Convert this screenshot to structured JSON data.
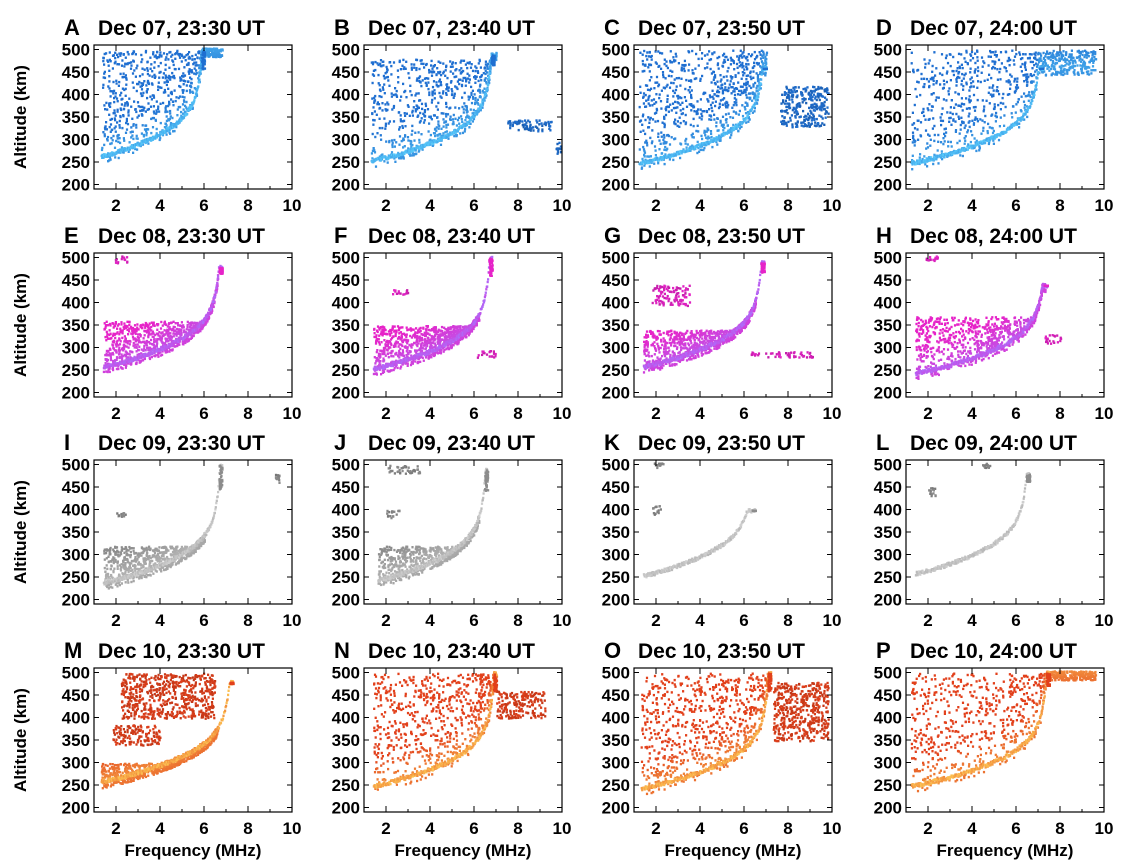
{
  "chart_data": {
    "type": "scatter",
    "description_free": true,
    "shared_axes": {
      "xlabel": "Frequency (MHz)",
      "ylabel": "Altitude (km)",
      "xlim": [
        1,
        10
      ],
      "ylim": [
        190,
        510
      ],
      "xticks": [
        2,
        4,
        6,
        8,
        10
      ],
      "yticks": [
        200,
        250,
        300,
        350,
        400,
        450,
        500
      ]
    },
    "rows": [
      {
        "date": "Dec 07",
        "color": "#1f6fd1",
        "light": "#5fd4ff"
      },
      {
        "date": "Dec 08",
        "color": "#e623c8",
        "light": "#a874ff"
      },
      {
        "date": "Dec 09",
        "color": "#8c8c8c",
        "light": "#d8d8d8"
      },
      {
        "date": "Dec 10",
        "color": "#e2401b",
        "light": "#ffd15a"
      }
    ],
    "panels": [
      {
        "letter": "A",
        "title": "Dec 07, 23:30 UT",
        "row": 0,
        "trace": {
          "f0": 1.3,
          "fc": 6.0,
          "h0": 265,
          "hmax": 500
        },
        "fill_top": 500,
        "fill_fmax": 6.8,
        "density": 0.55,
        "patches": []
      },
      {
        "letter": "B",
        "title": "Dec 07, 23:40 UT",
        "row": 0,
        "trace": {
          "f0": 1.3,
          "fc": 6.9,
          "h0": 255,
          "hmax": 490
        },
        "fill_top": 480,
        "fill_fmax": 7.0,
        "density": 0.5,
        "patches": [
          {
            "f": [
              7.5,
              9.5
            ],
            "h": [
              320,
              345
            ]
          },
          {
            "f": [
              9.7,
              10.0
            ],
            "h": [
              270,
              300
            ]
          }
        ]
      },
      {
        "letter": "C",
        "title": "Dec 07, 23:50 UT",
        "row": 0,
        "trace": {
          "f0": 1.2,
          "fc": 7.0,
          "h0": 250,
          "hmax": 460
        },
        "fill_top": 500,
        "fill_fmax": 7.0,
        "density": 0.55,
        "patches": [
          {
            "f": [
              7.6,
              9.8
            ],
            "h": [
              330,
              420
            ]
          }
        ]
      },
      {
        "letter": "D",
        "title": "Dec 07, 24:00 UT",
        "row": 0,
        "trace": {
          "f0": 1.2,
          "fc": 7.2,
          "h0": 250,
          "hmax": 460
        },
        "fill_top": 500,
        "fill_fmax": 9.6,
        "density": 0.6,
        "patches": []
      },
      {
        "letter": "E",
        "title": "Dec 08, 23:30 UT",
        "row": 1,
        "trace": {
          "f0": 1.4,
          "fc": 6.8,
          "h0": 260,
          "hmax": 480
        },
        "fill_top": 360,
        "fill_fmax": 6.6,
        "density": 0.6,
        "patches": [
          {
            "f": [
              1.9,
              2.6
            ],
            "h": [
              490,
              505
            ]
          }
        ]
      },
      {
        "letter": "F",
        "title": "Dec 08, 23:40 UT",
        "row": 1,
        "trace": {
          "f0": 1.4,
          "fc": 6.8,
          "h0": 255,
          "hmax": 500
        },
        "fill_top": 350,
        "fill_fmax": 6.2,
        "density": 0.6,
        "patches": [
          {
            "f": [
              2.2,
              3.0
            ],
            "h": [
              420,
              430
            ]
          },
          {
            "f": [
              6.1,
              7.0
            ],
            "h": [
              280,
              295
            ]
          }
        ]
      },
      {
        "letter": "G",
        "title": "Dec 08, 23:50 UT",
        "row": 1,
        "trace": {
          "f0": 1.4,
          "fc": 6.9,
          "h0": 260,
          "hmax": 490
        },
        "fill_top": 340,
        "fill_fmax": 6.5,
        "density": 0.55,
        "patches": [
          {
            "f": [
              1.8,
              3.5
            ],
            "h": [
              395,
              440
            ]
          },
          {
            "f": [
              6.3,
              9.2
            ],
            "h": [
              280,
              292
            ]
          }
        ]
      },
      {
        "letter": "H",
        "title": "Dec 08, 24:00 UT",
        "row": 1,
        "trace": {
          "f0": 1.4,
          "fc": 7.4,
          "h0": 245,
          "hmax": 440
        },
        "fill_top": 370,
        "fill_fmax": 7.3,
        "density": 0.55,
        "patches": [
          {
            "f": [
              7.2,
              8.0
            ],
            "h": [
              310,
              330
            ]
          },
          {
            "f": [
              1.8,
              2.4
            ],
            "h": [
              495,
              505
            ]
          }
        ]
      },
      {
        "letter": "I",
        "title": "Dec 09, 23:30 UT",
        "row": 2,
        "trace": {
          "f0": 1.4,
          "fc": 6.8,
          "h0": 240,
          "hmax": 500
        },
        "fill_top": 320,
        "fill_fmax": 6.0,
        "density": 0.5,
        "patches": [
          {
            "f": [
              2.0,
              2.4
            ],
            "h": [
              385,
              395
            ]
          },
          {
            "f": [
              9.2,
              9.4
            ],
            "h": [
              460,
              480
            ]
          }
        ]
      },
      {
        "letter": "J",
        "title": "Dec 09, 23:40 UT",
        "row": 2,
        "trace": {
          "f0": 1.6,
          "fc": 6.6,
          "h0": 245,
          "hmax": 490
        },
        "fill_top": 320,
        "fill_fmax": 6.2,
        "density": 0.45,
        "patches": [
          {
            "f": [
              2.0,
              3.5
            ],
            "h": [
              480,
              500
            ]
          },
          {
            "f": [
              2.0,
              2.6
            ],
            "h": [
              380,
              400
            ]
          }
        ]
      },
      {
        "letter": "K",
        "title": "Dec 09, 23:50 UT",
        "row": 2,
        "trace": {
          "f0": 1.4,
          "fc": 6.5,
          "h0": 255,
          "hmax": 400
        },
        "fill_top": 0,
        "fill_fmax": 0,
        "density": 0.0,
        "patches": [
          {
            "f": [
              1.8,
              2.2
            ],
            "h": [
              390,
              410
            ]
          },
          {
            "f": [
              1.9,
              2.3
            ],
            "h": [
              495,
              505
            ]
          }
        ]
      },
      {
        "letter": "L",
        "title": "Dec 09, 24:00 UT",
        "row": 2,
        "trace": {
          "f0": 1.4,
          "fc": 6.6,
          "h0": 260,
          "hmax": 480
        },
        "fill_top": 0,
        "fill_fmax": 0,
        "density": 0.0,
        "patches": [
          {
            "f": [
              2.0,
              2.3
            ],
            "h": [
              430,
              450
            ]
          },
          {
            "f": [
              4.4,
              4.8
            ],
            "h": [
              495,
              505
            ]
          }
        ]
      },
      {
        "letter": "M",
        "title": "Dec 10, 23:30 UT",
        "row": 3,
        "trace": {
          "f0": 1.3,
          "fc": 7.3,
          "h0": 260,
          "hmax": 480
        },
        "fill_top": 300,
        "fill_fmax": 6.6,
        "density": 0.5,
        "patches": [
          {
            "f": [
              2.2,
              6.5
            ],
            "h": [
              400,
              500
            ]
          },
          {
            "f": [
              1.8,
              4.0
            ],
            "h": [
              340,
              385
            ]
          }
        ]
      },
      {
        "letter": "N",
        "title": "Dec 10, 23:40 UT",
        "row": 3,
        "trace": {
          "f0": 1.4,
          "fc": 7.0,
          "h0": 250,
          "hmax": 500
        },
        "fill_top": 500,
        "fill_fmax": 7.0,
        "density": 0.5,
        "patches": [
          {
            "f": [
              7.0,
              9.2
            ],
            "h": [
              400,
              460
            ]
          }
        ]
      },
      {
        "letter": "O",
        "title": "Dec 10, 23:50 UT",
        "row": 3,
        "trace": {
          "f0": 1.3,
          "fc": 7.2,
          "h0": 245,
          "hmax": 500
        },
        "fill_top": 500,
        "fill_fmax": 7.2,
        "density": 0.55,
        "patches": [
          {
            "f": [
              7.3,
              9.8
            ],
            "h": [
              350,
              480
            ]
          }
        ]
      },
      {
        "letter": "P",
        "title": "Dec 10, 24:00 UT",
        "row": 3,
        "trace": {
          "f0": 1.2,
          "fc": 7.5,
          "h0": 250,
          "hmax": 500
        },
        "fill_top": 500,
        "fill_fmax": 9.6,
        "density": 0.6,
        "patches": []
      }
    ]
  }
}
